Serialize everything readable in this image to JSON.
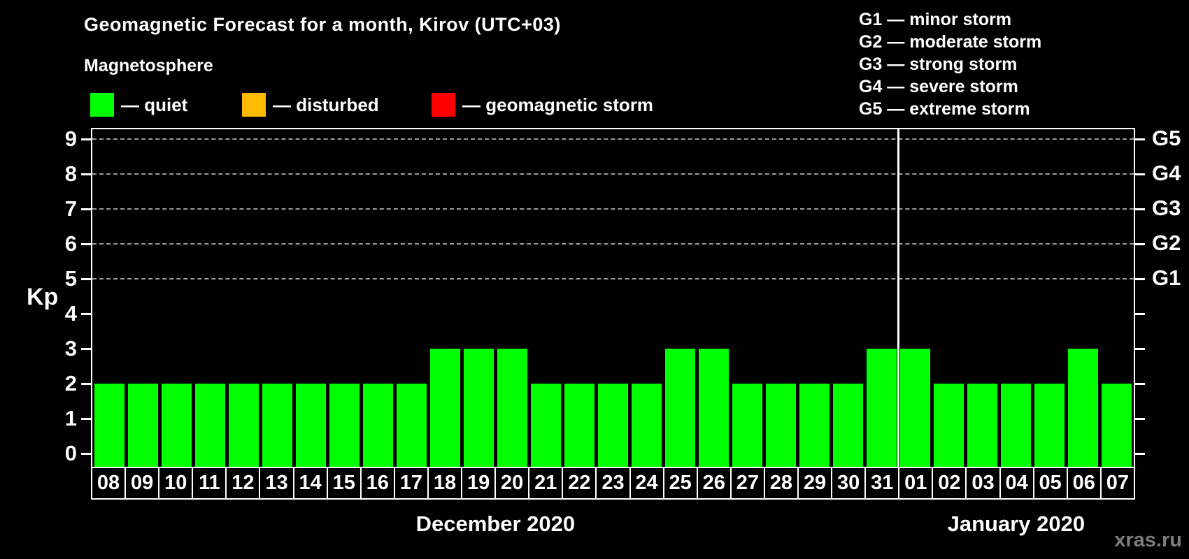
{
  "header": {
    "title": "Geomagnetic Forecast for a month, Kirov (UTC+03)",
    "subtitle": "Magnetosphere"
  },
  "legend": {
    "items": [
      {
        "name": "quiet",
        "color": "#00ff00",
        "label": "— quiet"
      },
      {
        "name": "disturbed",
        "color": "#ffbc00",
        "label": "— disturbed"
      },
      {
        "name": "geomagnetic-storm",
        "color": "#ff0000",
        "label": "— geomagnetic storm"
      }
    ]
  },
  "storm_scale_legend": [
    "G1 — minor storm",
    "G2 — moderate storm",
    "G3 — strong storm",
    "G4 — severe storm",
    "G5 — extreme storm"
  ],
  "watermark": "xras.ru",
  "chart_data": {
    "type": "bar",
    "title": "Geomagnetic Forecast for a month, Kirov (UTC+03)",
    "ylabel": "Kp",
    "bar_color": "#00ff00",
    "axis_color": "#ffffff",
    "gridline_color": "#9a9a9a",
    "ylim": [
      0,
      9.3
    ],
    "grid": "dashed horizontal at G-storm levels",
    "y_ticks": [
      0,
      1,
      2,
      3,
      4,
      5,
      6,
      7,
      8,
      9
    ],
    "gridline_values": [
      5,
      6,
      7,
      8,
      9
    ],
    "right_axis_labels": [
      {
        "label": "G1",
        "value": 5
      },
      {
        "label": "G2",
        "value": 6
      },
      {
        "label": "G3",
        "value": 7
      },
      {
        "label": "G4",
        "value": 8
      },
      {
        "label": "G5",
        "value": 9
      }
    ],
    "categories": [
      "08",
      "09",
      "10",
      "11",
      "12",
      "13",
      "14",
      "15",
      "16",
      "17",
      "18",
      "19",
      "20",
      "21",
      "22",
      "23",
      "24",
      "25",
      "26",
      "27",
      "28",
      "29",
      "30",
      "31",
      "01",
      "02",
      "03",
      "04",
      "05",
      "06",
      "07"
    ],
    "values": [
      2,
      2,
      2,
      2,
      2,
      2,
      2,
      2,
      2,
      2,
      3,
      3,
      3,
      2,
      2,
      2,
      2,
      3,
      3,
      2,
      2,
      2,
      2,
      3,
      3,
      2,
      2,
      2,
      2,
      3,
      2
    ],
    "months": [
      {
        "label": "December 2020",
        "days": 24
      },
      {
        "label": "January 2020",
        "days": 7
      }
    ]
  }
}
